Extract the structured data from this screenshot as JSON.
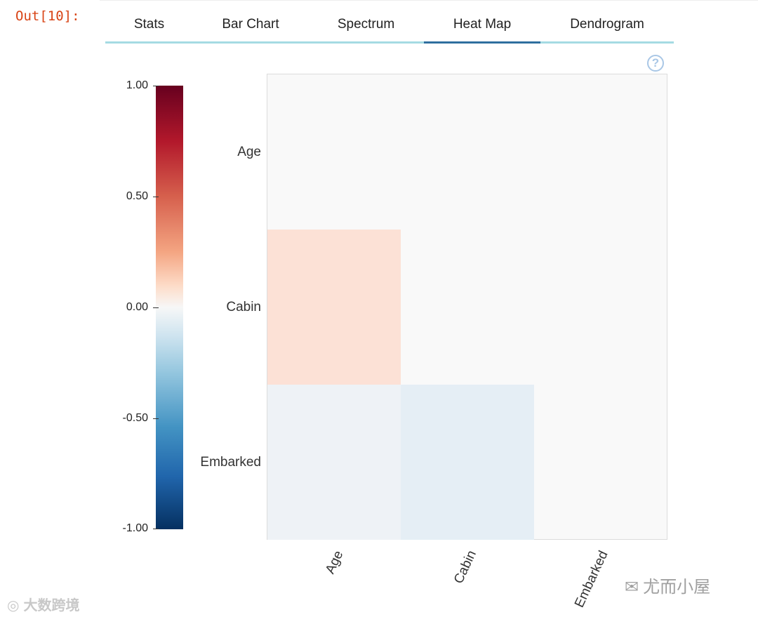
{
  "output_prompt": "Out[10]:",
  "tabs": [
    {
      "label": "Stats",
      "active": false
    },
    {
      "label": "Bar Chart",
      "active": false
    },
    {
      "label": "Spectrum",
      "active": false
    },
    {
      "label": "Heat Map",
      "active": true
    },
    {
      "label": "Dendrogram",
      "active": false
    }
  ],
  "help_icon": "?",
  "colorbar": {
    "ticks": [
      "1.00",
      "0.50",
      "0.00",
      "-0.50",
      "-1.00"
    ],
    "colors": {
      "max": "#67001f",
      "mid": "#f7f7f7",
      "min": "#053061"
    }
  },
  "chart_data": {
    "type": "heatmap",
    "rows": [
      "Age",
      "Cabin",
      "Embarked"
    ],
    "columns": [
      "Age",
      "Cabin",
      "Embarked"
    ],
    "values": [
      [
        null,
        null,
        null
      ],
      [
        0.2,
        null,
        null
      ],
      [
        -0.05,
        -0.1,
        null
      ]
    ],
    "vmin": -1.0,
    "vmax": 1.0,
    "cell_colors": {
      "cabin_age": "#fce1d6",
      "embarked_age": "#eef2f6",
      "embarked_cabin": "#e5eef5",
      "empty": "#f9f9f9"
    }
  },
  "watermarks": {
    "left": "大数跨境",
    "right": "尤而小屋"
  }
}
